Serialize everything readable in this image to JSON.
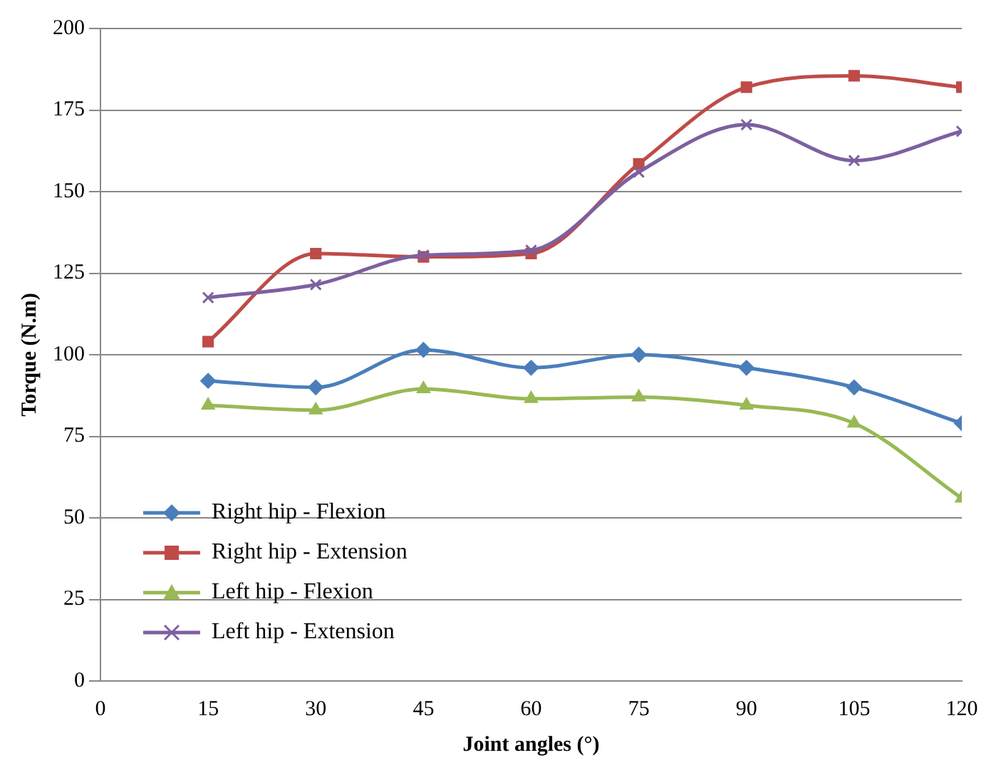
{
  "chart_data": {
    "type": "line",
    "xlabel": "Joint angles (°)",
    "ylabel": "Torque (N.m)",
    "x": [
      15,
      30,
      45,
      60,
      75,
      90,
      105,
      120
    ],
    "xlim": [
      0,
      120
    ],
    "xticks": [
      0,
      15,
      30,
      45,
      60,
      75,
      90,
      105,
      120
    ],
    "ylim": [
      0,
      200
    ],
    "yticks": [
      0,
      25,
      50,
      75,
      100,
      125,
      150,
      175,
      200
    ],
    "grid": "y",
    "legend": "bottom left",
    "line_style": "solid",
    "series": [
      {
        "name": "Right hip - Flexion",
        "color": "#4a7ebb",
        "marker": "diamond",
        "values": [
          92,
          90,
          101.5,
          96,
          100,
          96,
          90,
          79
        ]
      },
      {
        "name": "Right hip - Extension",
        "color": "#be4b48",
        "marker": "square",
        "values": [
          104,
          131,
          130,
          131,
          158.5,
          182,
          185.5,
          182
        ]
      },
      {
        "name": "Left hip - Flexion",
        "color": "#98b954",
        "marker": "triangle",
        "values": [
          84.5,
          83,
          89.5,
          86.5,
          87,
          84.5,
          79,
          56
        ]
      },
      {
        "name": "Left hip - Extension",
        "color": "#7d60a0",
        "marker": "cross",
        "values": [
          117.5,
          121.5,
          130.5,
          132,
          156,
          170.5,
          159.5,
          168.5
        ]
      }
    ]
  }
}
